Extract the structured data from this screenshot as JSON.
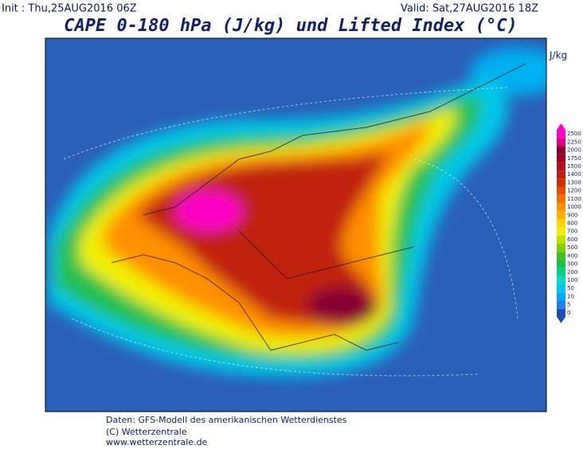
{
  "header": {
    "init": "Init : Thu,25AUG2016 06Z",
    "valid": "Valid: Sat,27AUG2016 18Z",
    "title": "CAPE 0-180 hPa (J/kg) und Lifted Index (°C)"
  },
  "legend": {
    "unit": "J/kg",
    "levels": [
      0,
      5,
      10,
      50,
      100,
      200,
      300,
      400,
      500,
      600,
      700,
      800,
      900,
      1000,
      1100,
      1200,
      1300,
      1400,
      1500,
      1750,
      2000,
      2250,
      2500
    ],
    "colors": [
      "#1f4fb8",
      "#1e7fe8",
      "#00a8f0",
      "#00c8e8",
      "#00dcc8",
      "#00d088",
      "#18c048",
      "#40c020",
      "#80d000",
      "#c0e000",
      "#f0f000",
      "#ffd700",
      "#ffb000",
      "#ff9000",
      "#f07000",
      "#e05000",
      "#d03000",
      "#c02010",
      "#b01020",
      "#a00020",
      "#880030",
      "#e00080",
      "#ff00c8"
    ]
  },
  "footer": {
    "lines": [
      "Daten: GFS-Modell des amerikanischen Wetterdienstes",
      "(C) Wetterzentrale",
      "www.wetterzentrale.de"
    ]
  }
}
